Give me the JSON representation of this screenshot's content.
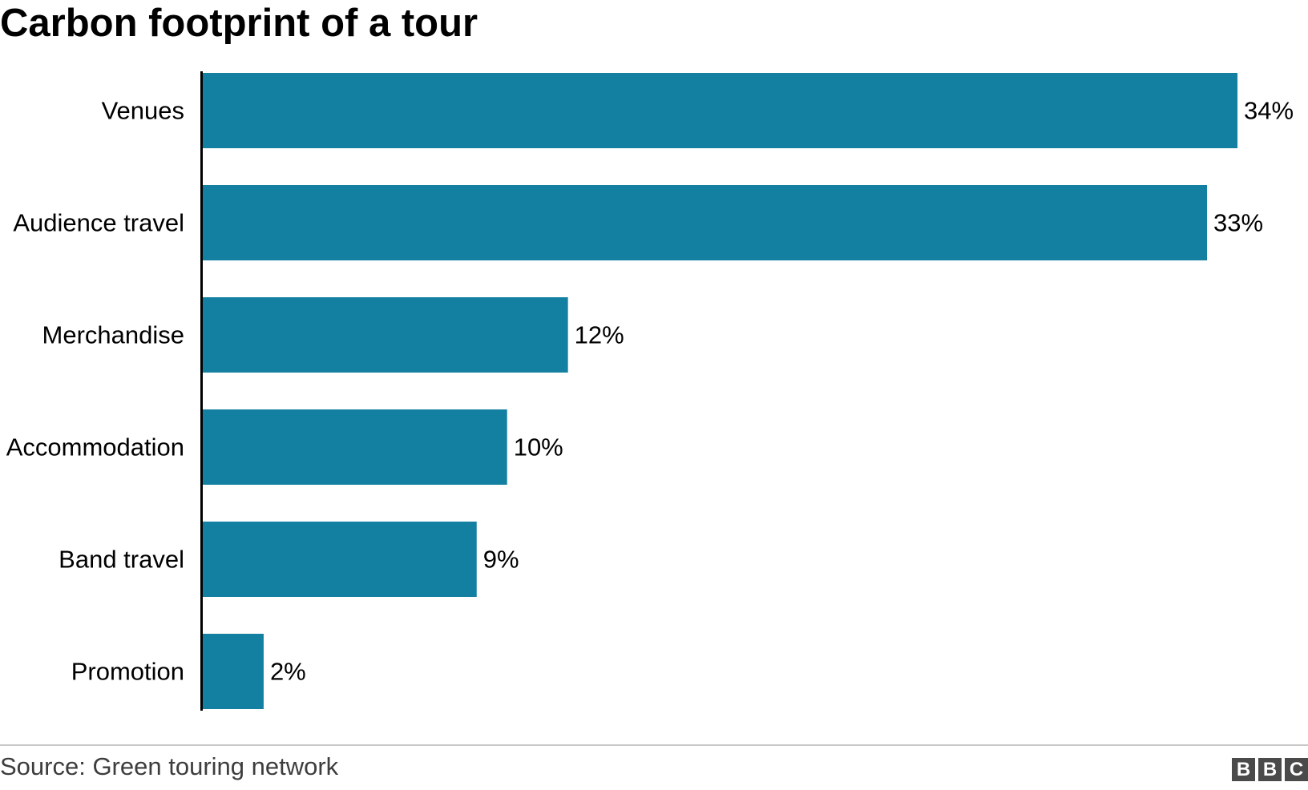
{
  "chart_data": {
    "type": "bar",
    "orientation": "horizontal",
    "title": "Carbon footprint of a tour",
    "categories": [
      "Venues",
      "Audience travel",
      "Merchandise",
      "Accommodation",
      "Band travel",
      "Promotion"
    ],
    "values": [
      34,
      33,
      12,
      10,
      9,
      2
    ],
    "value_labels": [
      "34%",
      "33%",
      "12%",
      "10%",
      "9%",
      "2%"
    ],
    "xlim": [
      0,
      34
    ],
    "grid": false,
    "bar_color": "#1380a1",
    "source": "Source: Green touring network"
  },
  "logo": {
    "letters": [
      "B",
      "B",
      "C"
    ]
  }
}
